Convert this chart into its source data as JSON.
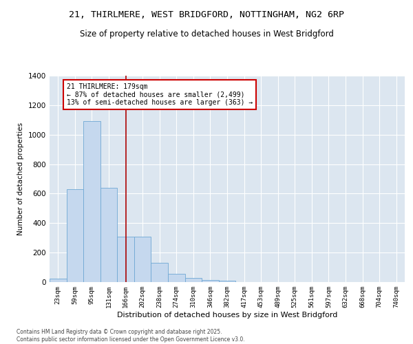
{
  "title_line1": "21, THIRLMERE, WEST BRIDGFORD, NOTTINGHAM, NG2 6RP",
  "title_line2": "Size of property relative to detached houses in West Bridgford",
  "xlabel": "Distribution of detached houses by size in West Bridgford",
  "ylabel": "Number of detached properties",
  "categories": [
    "23sqm",
    "59sqm",
    "95sqm",
    "131sqm",
    "166sqm",
    "202sqm",
    "238sqm",
    "274sqm",
    "310sqm",
    "346sqm",
    "382sqm",
    "417sqm",
    "453sqm",
    "489sqm",
    "525sqm",
    "561sqm",
    "597sqm",
    "632sqm",
    "668sqm",
    "704sqm",
    "740sqm"
  ],
  "values": [
    25,
    630,
    1090,
    640,
    310,
    310,
    130,
    55,
    30,
    15,
    8,
    0,
    0,
    0,
    0,
    0,
    0,
    0,
    0,
    0,
    0
  ],
  "bar_color": "#c5d8ee",
  "bar_edge_color": "#6fa8d4",
  "annotation_text_line1": "21 THIRLMERE: 179sqm",
  "annotation_text_line2": "← 87% of detached houses are smaller (2,499)",
  "annotation_text_line3": "13% of semi-detached houses are larger (363) →",
  "annotation_box_facecolor": "#ffffff",
  "annotation_box_edgecolor": "#cc0000",
  "vline_color": "#aa0000",
  "vline_x_index": 4.5,
  "ylim": [
    0,
    1400
  ],
  "yticks": [
    0,
    200,
    400,
    600,
    800,
    1000,
    1200,
    1400
  ],
  "background_color": "#dce6f0",
  "grid_color": "#ffffff",
  "footer_line1": "Contains HM Land Registry data © Crown copyright and database right 2025.",
  "footer_line2": "Contains public sector information licensed under the Open Government Licence v3.0."
}
